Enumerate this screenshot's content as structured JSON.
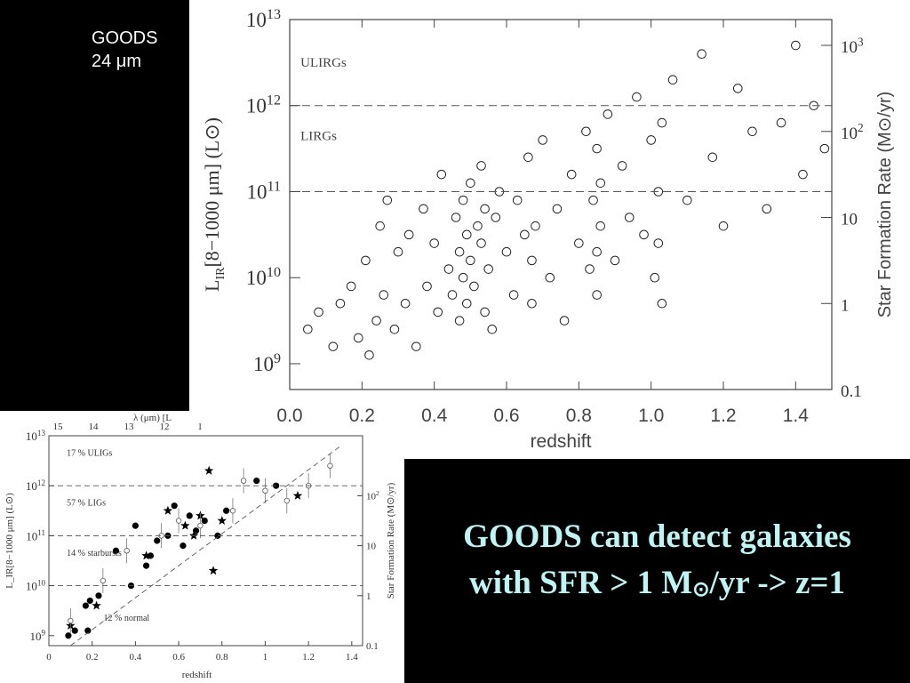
{
  "slide": {
    "survey_line1": "GOODS",
    "survey_line2": "24 μm",
    "caption_line1": "GOODS can detect galaxies",
    "caption_line2_a": "with SFR > 1 M",
    "caption_line2_sun": "⊙",
    "caption_line2_b": "/yr -> z=1",
    "caption_color": "#bff4f4"
  },
  "chart_data": [
    {
      "type": "scatter",
      "xlabel": "redshift",
      "ylabel": "L_IR[8−1000 μm] (L⊙)",
      "ylabel_parts": {
        "main": "L",
        "sub": "IR",
        "rest": "[8−1000 μm] (L⊙)"
      },
      "y2label": "Star Formation Rate (M⊙/yr)",
      "xlim": [
        0.0,
        1.5
      ],
      "ylim_log10": [
        8.7,
        13.0
      ],
      "y_scale": "log",
      "x_ticks": [
        "0.0",
        "0.2",
        "0.4",
        "0.6",
        "0.8",
        "1.0",
        "1.2",
        "1.4"
      ],
      "y_ticks": [
        {
          "log": 9,
          "label": "10^9"
        },
        {
          "log": 10,
          "label": "10^10"
        },
        {
          "log": 11,
          "label": "10^11"
        },
        {
          "log": 12,
          "label": "10^12"
        },
        {
          "log": 13,
          "label": "10^13"
        }
      ],
      "y2_ticks": [
        {
          "log": 8.7,
          "label": "0.1"
        },
        {
          "log": 9.7,
          "label": "1"
        },
        {
          "log": 10.7,
          "label": "10"
        },
        {
          "log": 11.7,
          "label": "10^2"
        },
        {
          "log": 12.7,
          "label": "10^3"
        }
      ],
      "hlines_log10": [
        11,
        12
      ],
      "annotations": [
        {
          "text": "ULIRGs",
          "x": 0.02,
          "y_log": 12.45
        },
        {
          "text": "LIRGs",
          "x": 0.02,
          "y_log": 11.6
        }
      ],
      "marker": "open-circle",
      "columns_note": "sources cluster in redshift spikes near z~0.48, 0.53, 0.67, 0.85, 1.02",
      "series": [
        {
          "values": [
            [
              0.05,
              9.4
            ],
            [
              0.08,
              9.6
            ],
            [
              0.12,
              9.2
            ],
            [
              0.14,
              9.7
            ],
            [
              0.17,
              9.9
            ],
            [
              0.19,
              9.3
            ],
            [
              0.21,
              10.2
            ],
            [
              0.22,
              9.1
            ],
            [
              0.24,
              9.5
            ],
            [
              0.25,
              10.6
            ],
            [
              0.26,
              9.8
            ],
            [
              0.27,
              10.9
            ],
            [
              0.29,
              9.4
            ],
            [
              0.3,
              10.3
            ],
            [
              0.32,
              9.7
            ],
            [
              0.33,
              10.5
            ],
            [
              0.35,
              9.2
            ],
            [
              0.37,
              10.8
            ],
            [
              0.38,
              9.9
            ],
            [
              0.4,
              10.4
            ],
            [
              0.41,
              9.6
            ],
            [
              0.42,
              11.2
            ],
            [
              0.44,
              10.1
            ],
            [
              0.45,
              9.8
            ],
            [
              0.46,
              10.7
            ],
            [
              0.47,
              10.3
            ],
            [
              0.47,
              9.5
            ],
            [
              0.48,
              10.9
            ],
            [
              0.48,
              10.0
            ],
            [
              0.49,
              10.5
            ],
            [
              0.49,
              9.7
            ],
            [
              0.5,
              11.1
            ],
            [
              0.5,
              10.2
            ],
            [
              0.51,
              9.9
            ],
            [
              0.52,
              10.6
            ],
            [
              0.53,
              10.4
            ],
            [
              0.53,
              11.3
            ],
            [
              0.54,
              9.6
            ],
            [
              0.54,
              10.8
            ],
            [
              0.55,
              10.1
            ],
            [
              0.56,
              9.4
            ],
            [
              0.57,
              10.7
            ],
            [
              0.58,
              11.0
            ],
            [
              0.6,
              10.3
            ],
            [
              0.62,
              9.8
            ],
            [
              0.63,
              10.9
            ],
            [
              0.65,
              10.5
            ],
            [
              0.66,
              11.4
            ],
            [
              0.67,
              10.2
            ],
            [
              0.67,
              9.7
            ],
            [
              0.68,
              10.6
            ],
            [
              0.7,
              11.6
            ],
            [
              0.72,
              10.0
            ],
            [
              0.74,
              10.8
            ],
            [
              0.76,
              9.5
            ],
            [
              0.78,
              11.2
            ],
            [
              0.8,
              10.4
            ],
            [
              0.82,
              11.7
            ],
            [
              0.83,
              10.1
            ],
            [
              0.84,
              10.9
            ],
            [
              0.85,
              11.5
            ],
            [
              0.85,
              10.3
            ],
            [
              0.85,
              9.8
            ],
            [
              0.86,
              11.1
            ],
            [
              0.86,
              10.6
            ],
            [
              0.88,
              11.9
            ],
            [
              0.9,
              10.2
            ],
            [
              0.92,
              11.3
            ],
            [
              0.94,
              10.7
            ],
            [
              0.96,
              12.1
            ],
            [
              0.98,
              10.5
            ],
            [
              1.0,
              11.6
            ],
            [
              1.01,
              10.0
            ],
            [
              1.02,
              11.0
            ],
            [
              1.02,
              10.4
            ],
            [
              1.03,
              11.8
            ],
            [
              1.03,
              9.7
            ],
            [
              1.06,
              12.3
            ],
            [
              1.1,
              10.9
            ],
            [
              1.14,
              12.6
            ],
            [
              1.17,
              11.4
            ],
            [
              1.2,
              10.6
            ],
            [
              1.24,
              12.2
            ],
            [
              1.28,
              11.7
            ],
            [
              1.32,
              10.8
            ],
            [
              1.36,
              11.8
            ],
            [
              1.4,
              12.7
            ],
            [
              1.42,
              11.2
            ],
            [
              1.45,
              12.0
            ],
            [
              1.48,
              11.5
            ]
          ]
        }
      ]
    },
    {
      "type": "scatter",
      "xlabel": "redshift",
      "ylabel": "L_IR[8−1000 μm] (L⊙)",
      "y2label": "Star Formation Rate (M⊙/yr)",
      "top_axis_label": "λ (μm) [L",
      "top_ticks": [
        "15",
        "14",
        "13",
        "12",
        "1"
      ],
      "xlim": [
        0.0,
        1.45
      ],
      "ylim_log10": [
        8.8,
        13.0
      ],
      "y_scale": "log",
      "x_ticks": [
        "0",
        "0.2",
        "0.4",
        "0.6",
        "0.8",
        "1",
        "1.2",
        "1.4"
      ],
      "y_ticks": [
        {
          "log": 9,
          "label": "10^9"
        },
        {
          "log": 10,
          "label": "10^10"
        },
        {
          "log": 11,
          "label": "10^11"
        },
        {
          "log": 12,
          "label": "10^12"
        },
        {
          "log": 13,
          "label": "10^13"
        }
      ],
      "y2_ticks": [
        {
          "log": 8.8,
          "label": "0.1"
        },
        {
          "log": 9.8,
          "label": "1"
        },
        {
          "log": 10.8,
          "label": "10"
        },
        {
          "log": 11.8,
          "label": "10^2"
        }
      ],
      "hlines_log10": [
        10,
        11,
        12
      ],
      "annotations": [
        {
          "text": "17 % ULIGs",
          "x": 0.05,
          "y_log": 12.6
        },
        {
          "text": "57 % LIGs",
          "x": 0.05,
          "y_log": 11.6
        },
        {
          "text": "14 % starbursts",
          "x": 0.05,
          "y_log": 10.6
        },
        {
          "text": "12 % normal",
          "x": 0.22,
          "y_log": 9.3
        }
      ],
      "series": [
        {
          "marker": "filled-circle",
          "values": [
            [
              0.09,
              9.0
            ],
            [
              0.12,
              9.1
            ],
            [
              0.17,
              9.6
            ],
            [
              0.18,
              9.1
            ],
            [
              0.19,
              9.7
            ],
            [
              0.23,
              9.8
            ],
            [
              0.31,
              10.7
            ],
            [
              0.38,
              10.0
            ],
            [
              0.4,
              11.2
            ],
            [
              0.45,
              10.4
            ],
            [
              0.47,
              10.6
            ],
            [
              0.5,
              10.9
            ],
            [
              0.55,
              11.0
            ],
            [
              0.58,
              11.6
            ],
            [
              0.62,
              10.8
            ],
            [
              0.65,
              11.4
            ],
            [
              0.68,
              11.1
            ],
            [
              0.72,
              11.3
            ],
            [
              0.78,
              11.0
            ],
            [
              0.82,
              11.5
            ],
            [
              0.96,
              12.1
            ],
            [
              1.05,
              12.0
            ]
          ]
        },
        {
          "marker": "star",
          "values": [
            [
              0.1,
              9.2
            ],
            [
              0.22,
              9.6
            ],
            [
              0.45,
              10.6
            ],
            [
              0.55,
              11.5
            ],
            [
              0.63,
              11.2
            ],
            [
              0.67,
              11.0
            ],
            [
              0.7,
              11.4
            ],
            [
              0.74,
              12.3
            ],
            [
              0.76,
              10.3
            ],
            [
              0.8,
              11.3
            ],
            [
              1.15,
              11.8
            ]
          ]
        },
        {
          "marker": "open-circle-errorbar",
          "values": [
            [
              0.1,
              9.3
            ],
            [
              0.25,
              10.1
            ],
            [
              0.36,
              10.7
            ],
            [
              0.52,
              11.0
            ],
            [
              0.6,
              11.3
            ],
            [
              0.7,
              11.2
            ],
            [
              0.85,
              11.5
            ],
            [
              0.9,
              12.1
            ],
            [
              1.0,
              11.9
            ],
            [
              1.1,
              11.7
            ],
            [
              1.2,
              12.0
            ],
            [
              1.3,
              12.4
            ]
          ]
        }
      ],
      "trend_line": [
        [
          0.1,
          8.8
        ],
        [
          1.35,
          12.8
        ]
      ]
    }
  ]
}
